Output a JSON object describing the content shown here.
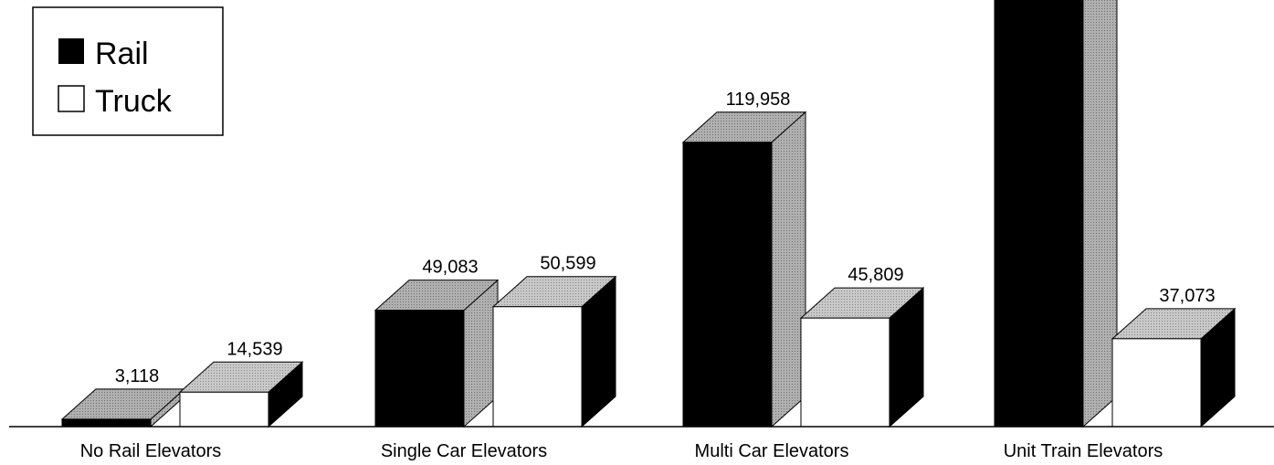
{
  "chart_data": {
    "type": "bar3d",
    "categories": [
      "No Rail Elevators",
      "Single Car Elevators",
      "Multi Car Elevators",
      "Unit Train Elevators"
    ],
    "series": [
      {
        "name": "Rail",
        "color": "#000000",
        "values": [
          3118,
          49083,
          119958,
          190000
        ],
        "value_labels": [
          "3,118",
          "49,083",
          "119,958",
          null
        ]
      },
      {
        "name": "Truck",
        "color": "#ffffff",
        "values": [
          14539,
          50599,
          45809,
          37073
        ],
        "value_labels": [
          "14,539",
          "50,599",
          "45,809",
          "37,073"
        ]
      }
    ],
    "ylim": [
      0,
      180000
    ],
    "legend": "top-left"
  }
}
